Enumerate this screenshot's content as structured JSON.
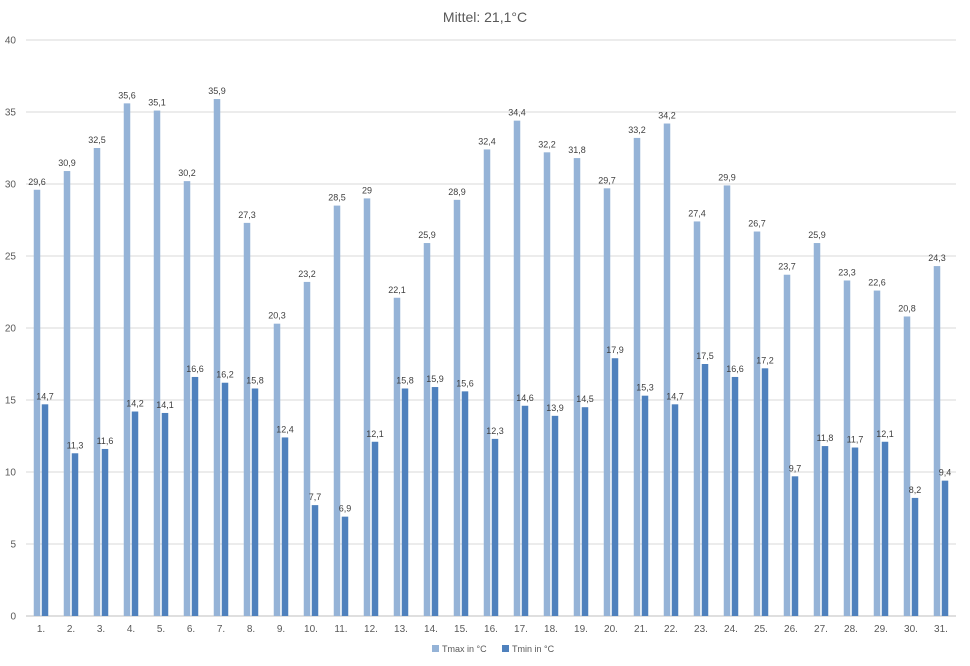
{
  "chart_data": {
    "type": "bar",
    "title": "Mittel: 21,1°C",
    "xlabel": "",
    "ylabel": "",
    "ylim": [
      0,
      40
    ],
    "yticks": [
      "0",
      "5",
      "10",
      "15",
      "20",
      "25",
      "30",
      "35",
      "40"
    ],
    "grid": "horizontal",
    "legend": "bottom",
    "categories": [
      "1.",
      "2.",
      "3.",
      "4.",
      "5.",
      "6.",
      "7.",
      "8.",
      "9.",
      "10.",
      "11.",
      "12.",
      "13.",
      "14.",
      "15.",
      "16.",
      "17.",
      "18.",
      "19.",
      "20.",
      "21.",
      "22.",
      "23.",
      "24.",
      "25.",
      "26.",
      "27.",
      "28.",
      "29.",
      "30.",
      "31."
    ],
    "series": [
      {
        "name": "Tmax in °C",
        "color": "#95B3D7",
        "values": [
          29.6,
          30.9,
          32.5,
          35.6,
          35.1,
          30.2,
          35.9,
          27.3,
          20.3,
          23.2,
          28.5,
          29,
          22.1,
          25.9,
          28.9,
          32.4,
          34.4,
          32.2,
          31.8,
          29.7,
          33.2,
          34.2,
          27.4,
          29.9,
          26.7,
          23.7,
          25.9,
          23.3,
          22.6,
          20.8,
          24.3
        ],
        "labels": [
          "29,6",
          "30,9",
          "32,5",
          "35,6",
          "35,1",
          "30,2",
          "35,9",
          "27,3",
          "20,3",
          "23,2",
          "28,5",
          "29",
          "22,1",
          "25,9",
          "28,9",
          "32,4",
          "34,4",
          "32,2",
          "31,8",
          "29,7",
          "33,2",
          "34,2",
          "27,4",
          "29,9",
          "26,7",
          "23,7",
          "25,9",
          "23,3",
          "22,6",
          "20,8",
          "24,3"
        ]
      },
      {
        "name": "Tmin in °C",
        "color": "#4F81BD",
        "values": [
          14.7,
          11.3,
          11.6,
          14.2,
          14.1,
          16.6,
          16.2,
          15.8,
          12.4,
          7.7,
          6.9,
          12.1,
          15.8,
          15.9,
          15.6,
          12.3,
          14.6,
          13.9,
          14.5,
          17.9,
          15.3,
          14.7,
          17.5,
          16.6,
          17.2,
          9.7,
          11.8,
          11.7,
          12.1,
          8.2,
          9.4
        ],
        "labels": [
          "14,7",
          "11,3",
          "11,6",
          "14,2",
          "14,1",
          "16,6",
          "16,2",
          "15,8",
          "12,4",
          "7,7",
          "6,9",
          "12,1",
          "15,8",
          "15,9",
          "15,6",
          "12,3",
          "14,6",
          "13,9",
          "14,5",
          "17,9",
          "15,3",
          "14,7",
          "17,5",
          "16,6",
          "17,2",
          "9,7",
          "11,8",
          "11,7",
          "12,1",
          "8,2",
          "9,4"
        ]
      }
    ]
  }
}
